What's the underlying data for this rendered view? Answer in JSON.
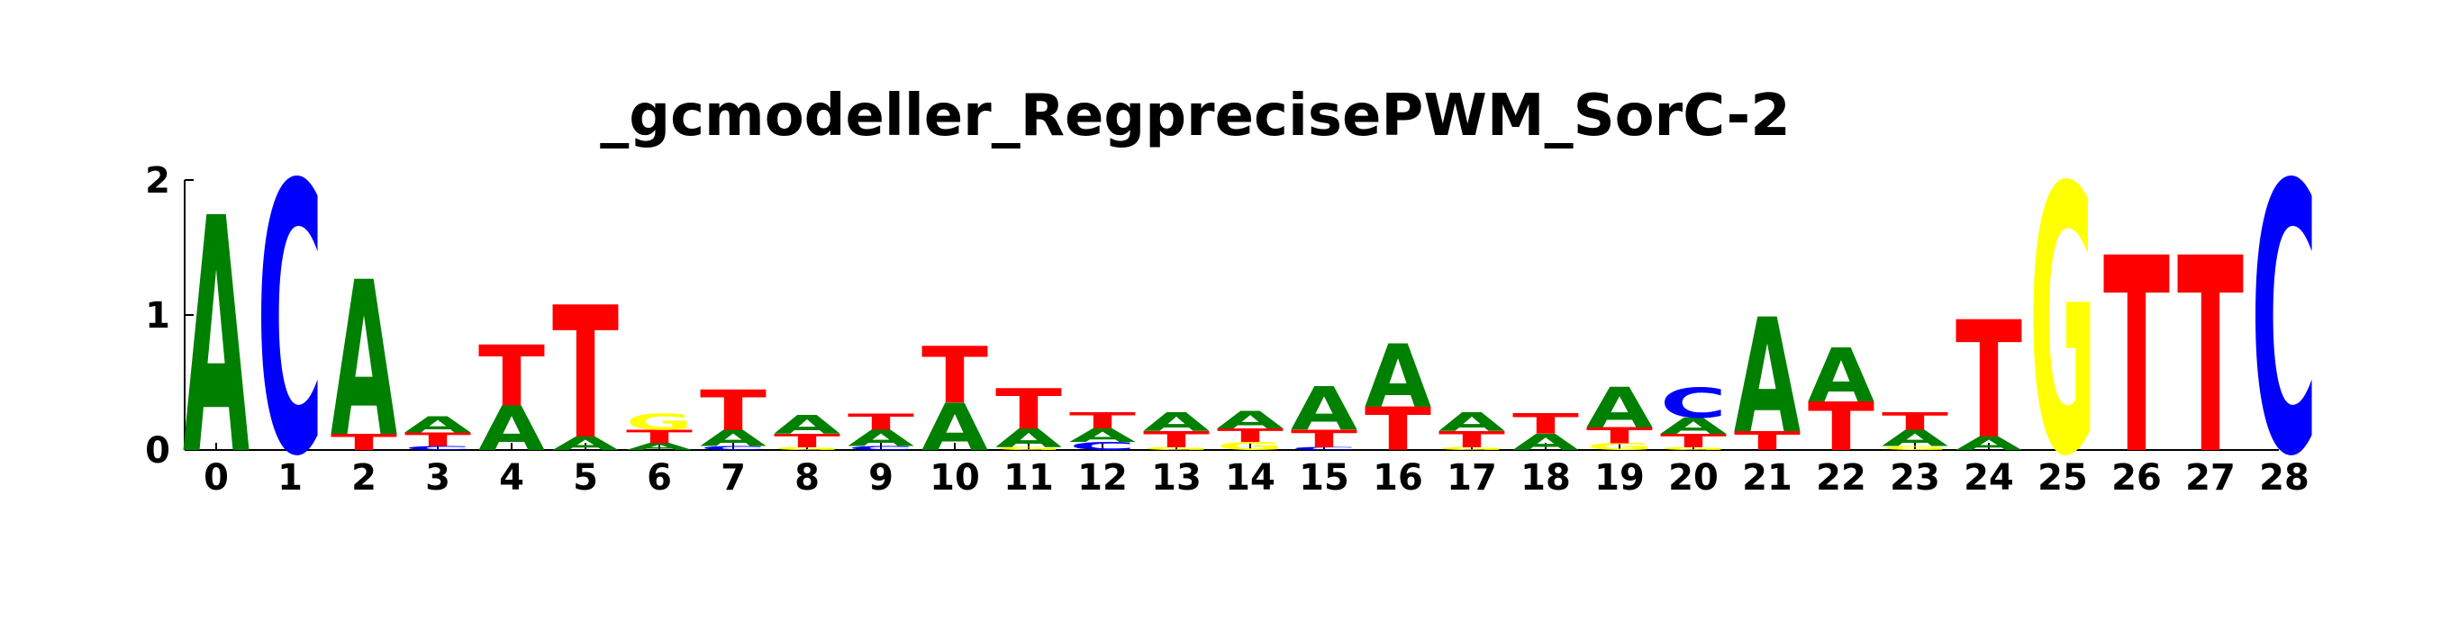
{
  "chart_data": {
    "type": "sequence-logo",
    "title": "_gcmodeller_RegprecisePWM_SorC-2",
    "xlabel": "",
    "ylabel": "",
    "ylim": [
      0,
      2
    ],
    "y_ticks": [
      "0",
      "1",
      "2"
    ],
    "x_ticks": [
      "0",
      "1",
      "2",
      "3",
      "4",
      "5",
      "6",
      "7",
      "8",
      "9",
      "10",
      "11",
      "12",
      "13",
      "14",
      "15",
      "16",
      "17",
      "18",
      "19",
      "20",
      "21",
      "22",
      "23",
      "24",
      "25",
      "26",
      "27",
      "28"
    ],
    "colors": {
      "A": "#008000",
      "C": "#0000ff",
      "G": "#ffff00",
      "T": "#ff0000"
    },
    "positions": [
      [
        {
          "base": "A",
          "height": 1.75
        }
      ],
      [
        {
          "base": "C",
          "height": 2.0
        }
      ],
      [
        {
          "base": "T",
          "height": 0.12
        },
        {
          "base": "A",
          "height": 1.15
        }
      ],
      [
        {
          "base": "C",
          "height": 0.03
        },
        {
          "base": "T",
          "height": 0.1
        },
        {
          "base": "A",
          "height": 0.12
        }
      ],
      [
        {
          "base": "A",
          "height": 0.33
        },
        {
          "base": "T",
          "height": 0.45
        }
      ],
      [
        {
          "base": "A",
          "height": 0.1
        },
        {
          "base": "T",
          "height": 0.98
        }
      ],
      [
        {
          "base": "A",
          "height": 0.05
        },
        {
          "base": "T",
          "height": 0.1
        },
        {
          "base": "G",
          "height": 0.12
        }
      ],
      [
        {
          "base": "C",
          "height": 0.03
        },
        {
          "base": "A",
          "height": 0.12
        },
        {
          "base": "T",
          "height": 0.3
        }
      ],
      [
        {
          "base": "G",
          "height": 0.02
        },
        {
          "base": "T",
          "height": 0.1
        },
        {
          "base": "A",
          "height": 0.14
        }
      ],
      [
        {
          "base": "C",
          "height": 0.03
        },
        {
          "base": "A",
          "height": 0.12
        },
        {
          "base": "T",
          "height": 0.12
        }
      ],
      [
        {
          "base": "A",
          "height": 0.35
        },
        {
          "base": "T",
          "height": 0.42
        }
      ],
      [
        {
          "base": "G",
          "height": 0.02
        },
        {
          "base": "A",
          "height": 0.14
        },
        {
          "base": "T",
          "height": 0.3
        }
      ],
      [
        {
          "base": "C",
          "height": 0.06
        },
        {
          "base": "A",
          "height": 0.1
        },
        {
          "base": "T",
          "height": 0.12
        }
      ],
      [
        {
          "base": "G",
          "height": 0.02
        },
        {
          "base": "T",
          "height": 0.12
        },
        {
          "base": "A",
          "height": 0.14
        }
      ],
      [
        {
          "base": "G",
          "height": 0.06
        },
        {
          "base": "T",
          "height": 0.1
        },
        {
          "base": "A",
          "height": 0.13
        }
      ],
      [
        {
          "base": "C",
          "height": 0.02
        },
        {
          "base": "T",
          "height": 0.13
        },
        {
          "base": "A",
          "height": 0.32
        }
      ],
      [
        {
          "base": "T",
          "height": 0.32
        },
        {
          "base": "A",
          "height": 0.47
        }
      ],
      [
        {
          "base": "G",
          "height": 0.02
        },
        {
          "base": "T",
          "height": 0.12
        },
        {
          "base": "A",
          "height": 0.14
        }
      ],
      [
        {
          "base": "A",
          "height": 0.12
        },
        {
          "base": "T",
          "height": 0.15
        }
      ],
      [
        {
          "base": "G",
          "height": 0.05
        },
        {
          "base": "T",
          "height": 0.12
        },
        {
          "base": "A",
          "height": 0.3
        }
      ],
      [
        {
          "base": "G",
          "height": 0.02
        },
        {
          "base": "T",
          "height": 0.1
        },
        {
          "base": "A",
          "height": 0.12
        },
        {
          "base": "C",
          "height": 0.22
        }
      ],
      [
        {
          "base": "T",
          "height": 0.14
        },
        {
          "base": "A",
          "height": 0.85
        }
      ],
      [
        {
          "base": "T",
          "height": 0.36
        },
        {
          "base": "A",
          "height": 0.4
        }
      ],
      [
        {
          "base": "G",
          "height": 0.03
        },
        {
          "base": "A",
          "height": 0.12
        },
        {
          "base": "T",
          "height": 0.13
        }
      ],
      [
        {
          "base": "A",
          "height": 0.1
        },
        {
          "base": "T",
          "height": 0.87
        }
      ],
      [
        {
          "base": "G",
          "height": 1.98
        }
      ],
      [
        {
          "base": "T",
          "height": 1.45
        }
      ],
      [
        {
          "base": "T",
          "height": 1.45
        }
      ],
      [
        {
          "base": "C",
          "height": 2.0
        }
      ]
    ]
  }
}
